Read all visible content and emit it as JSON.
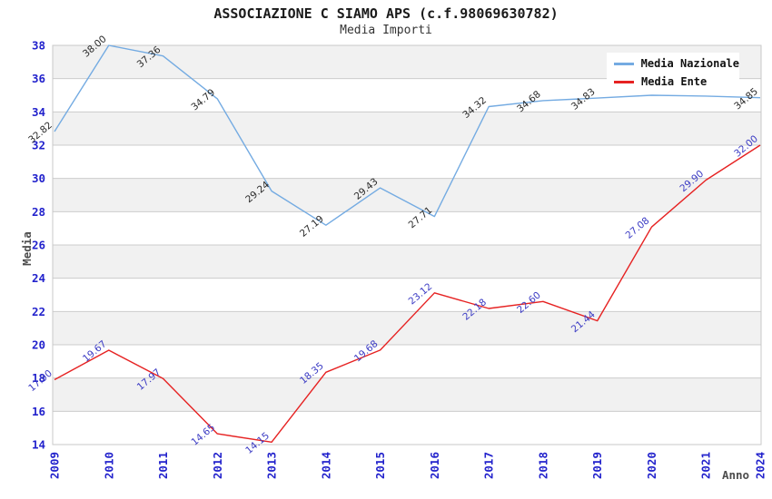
{
  "header": {
    "title": "ASSOCIAZIONE C SIAMO APS (c.f.98069630782)",
    "subtitle": "Media Importi"
  },
  "legend": {
    "items": [
      {
        "label": "Media Nazionale",
        "color": "#74abe2"
      },
      {
        "label": "Media Ente",
        "color": "#e62222"
      }
    ]
  },
  "chart_data": {
    "type": "line",
    "title": "ASSOCIAZIONE C SIAMO APS (c.f.98069630782)",
    "subtitle": "Media Importi",
    "xlabel": "Anno",
    "ylabel": "Media",
    "categories": [
      "2009",
      "2010",
      "2011",
      "2012",
      "2013",
      "2014",
      "2015",
      "2016",
      "2017",
      "2018",
      "2019",
      "2020",
      "2021",
      "2024"
    ],
    "ylim": [
      14,
      38
    ],
    "ytick_step": 2,
    "grid": true,
    "band_colors": [
      "#f1f1f1",
      "#ffffff"
    ],
    "gridline_color": "#cccccc",
    "tick_label_color": "#2222cc",
    "axis_title_color": "#4d4d4d",
    "legend_position": "top-right",
    "series": [
      {
        "name": "Media Nazionale",
        "color": "#74abe2",
        "label_color": "#2a2a2a",
        "values": [
          32.82,
          38.0,
          37.36,
          34.79,
          29.24,
          27.19,
          29.43,
          27.71,
          34.32,
          34.68,
          34.83,
          35.0,
          34.95,
          34.85
        ],
        "labels": [
          "32.82",
          "38.00",
          "37.36",
          "34.79",
          "29.24",
          "27.19",
          "29.43",
          "27.71",
          "34.32",
          "34.68",
          "34.83",
          "",
          "",
          "34.85"
        ]
      },
      {
        "name": "Media Ente",
        "color": "#e62222",
        "label_color": "#3b3bc4",
        "values": [
          17.9,
          19.67,
          17.97,
          14.65,
          14.15,
          18.35,
          19.68,
          23.12,
          22.18,
          22.6,
          21.44,
          27.08,
          29.9,
          32.0
        ],
        "labels": [
          "17.90",
          "19.67",
          "17.97",
          "14.65",
          "14.15",
          "18.35",
          "19.68",
          "23.12",
          "22.18",
          "22.60",
          "21.44",
          "27.08",
          "29.90",
          "32.00"
        ]
      }
    ]
  }
}
